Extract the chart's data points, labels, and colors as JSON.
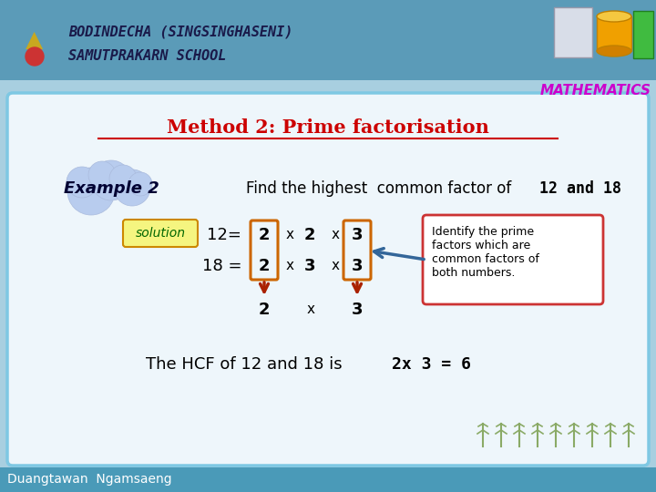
{
  "bg_color": "#a8cfe0",
  "header_bg": "#5b9bb8",
  "header_text1": "BODINDECHA (SINGSINGHASENI)",
  "header_text2": "SAMUTPRAKARN SCHOOL",
  "math_text": "MATHEMATICS",
  "math_color": "#cc00cc",
  "content_bg": "#eef6fb",
  "content_border": "#7ec8e3",
  "title_text": "Method 2: Prime factorisation",
  "title_color": "#cc0000",
  "example_text": "Example 2",
  "example_cloud_color": "#b8ccee",
  "solution_text": "solution",
  "solution_bg": "#f5f580",
  "solution_border": "#cc8800",
  "solution_color": "#006600",
  "row1_label": "12=",
  "row2_label": "18 =",
  "row1_factors": [
    "2",
    "x",
    "2",
    "x",
    "3"
  ],
  "row2_factors": [
    "2",
    "x",
    "3",
    "x",
    "3"
  ],
  "box_color": "#cc6600",
  "arrow_color": "#aa2200",
  "note_text": "Identify the prime\nfactors which are\ncommon factors of\nboth numbers.",
  "note_border": "#cc3333",
  "note_bg": "#ffffff",
  "arrow_note_color": "#336699",
  "hcf_plain": "The HCF of 12 and 18 is  ",
  "hcf_bold": "2x 3 = 6",
  "footer_bg": "#4a9ab8",
  "footer_text": "Duangtawan  Ngamsaeng",
  "footer_color": "#ffffff",
  "find_plain": "Find the highest  common factor of",
  "find_bold": "  12 and 18"
}
